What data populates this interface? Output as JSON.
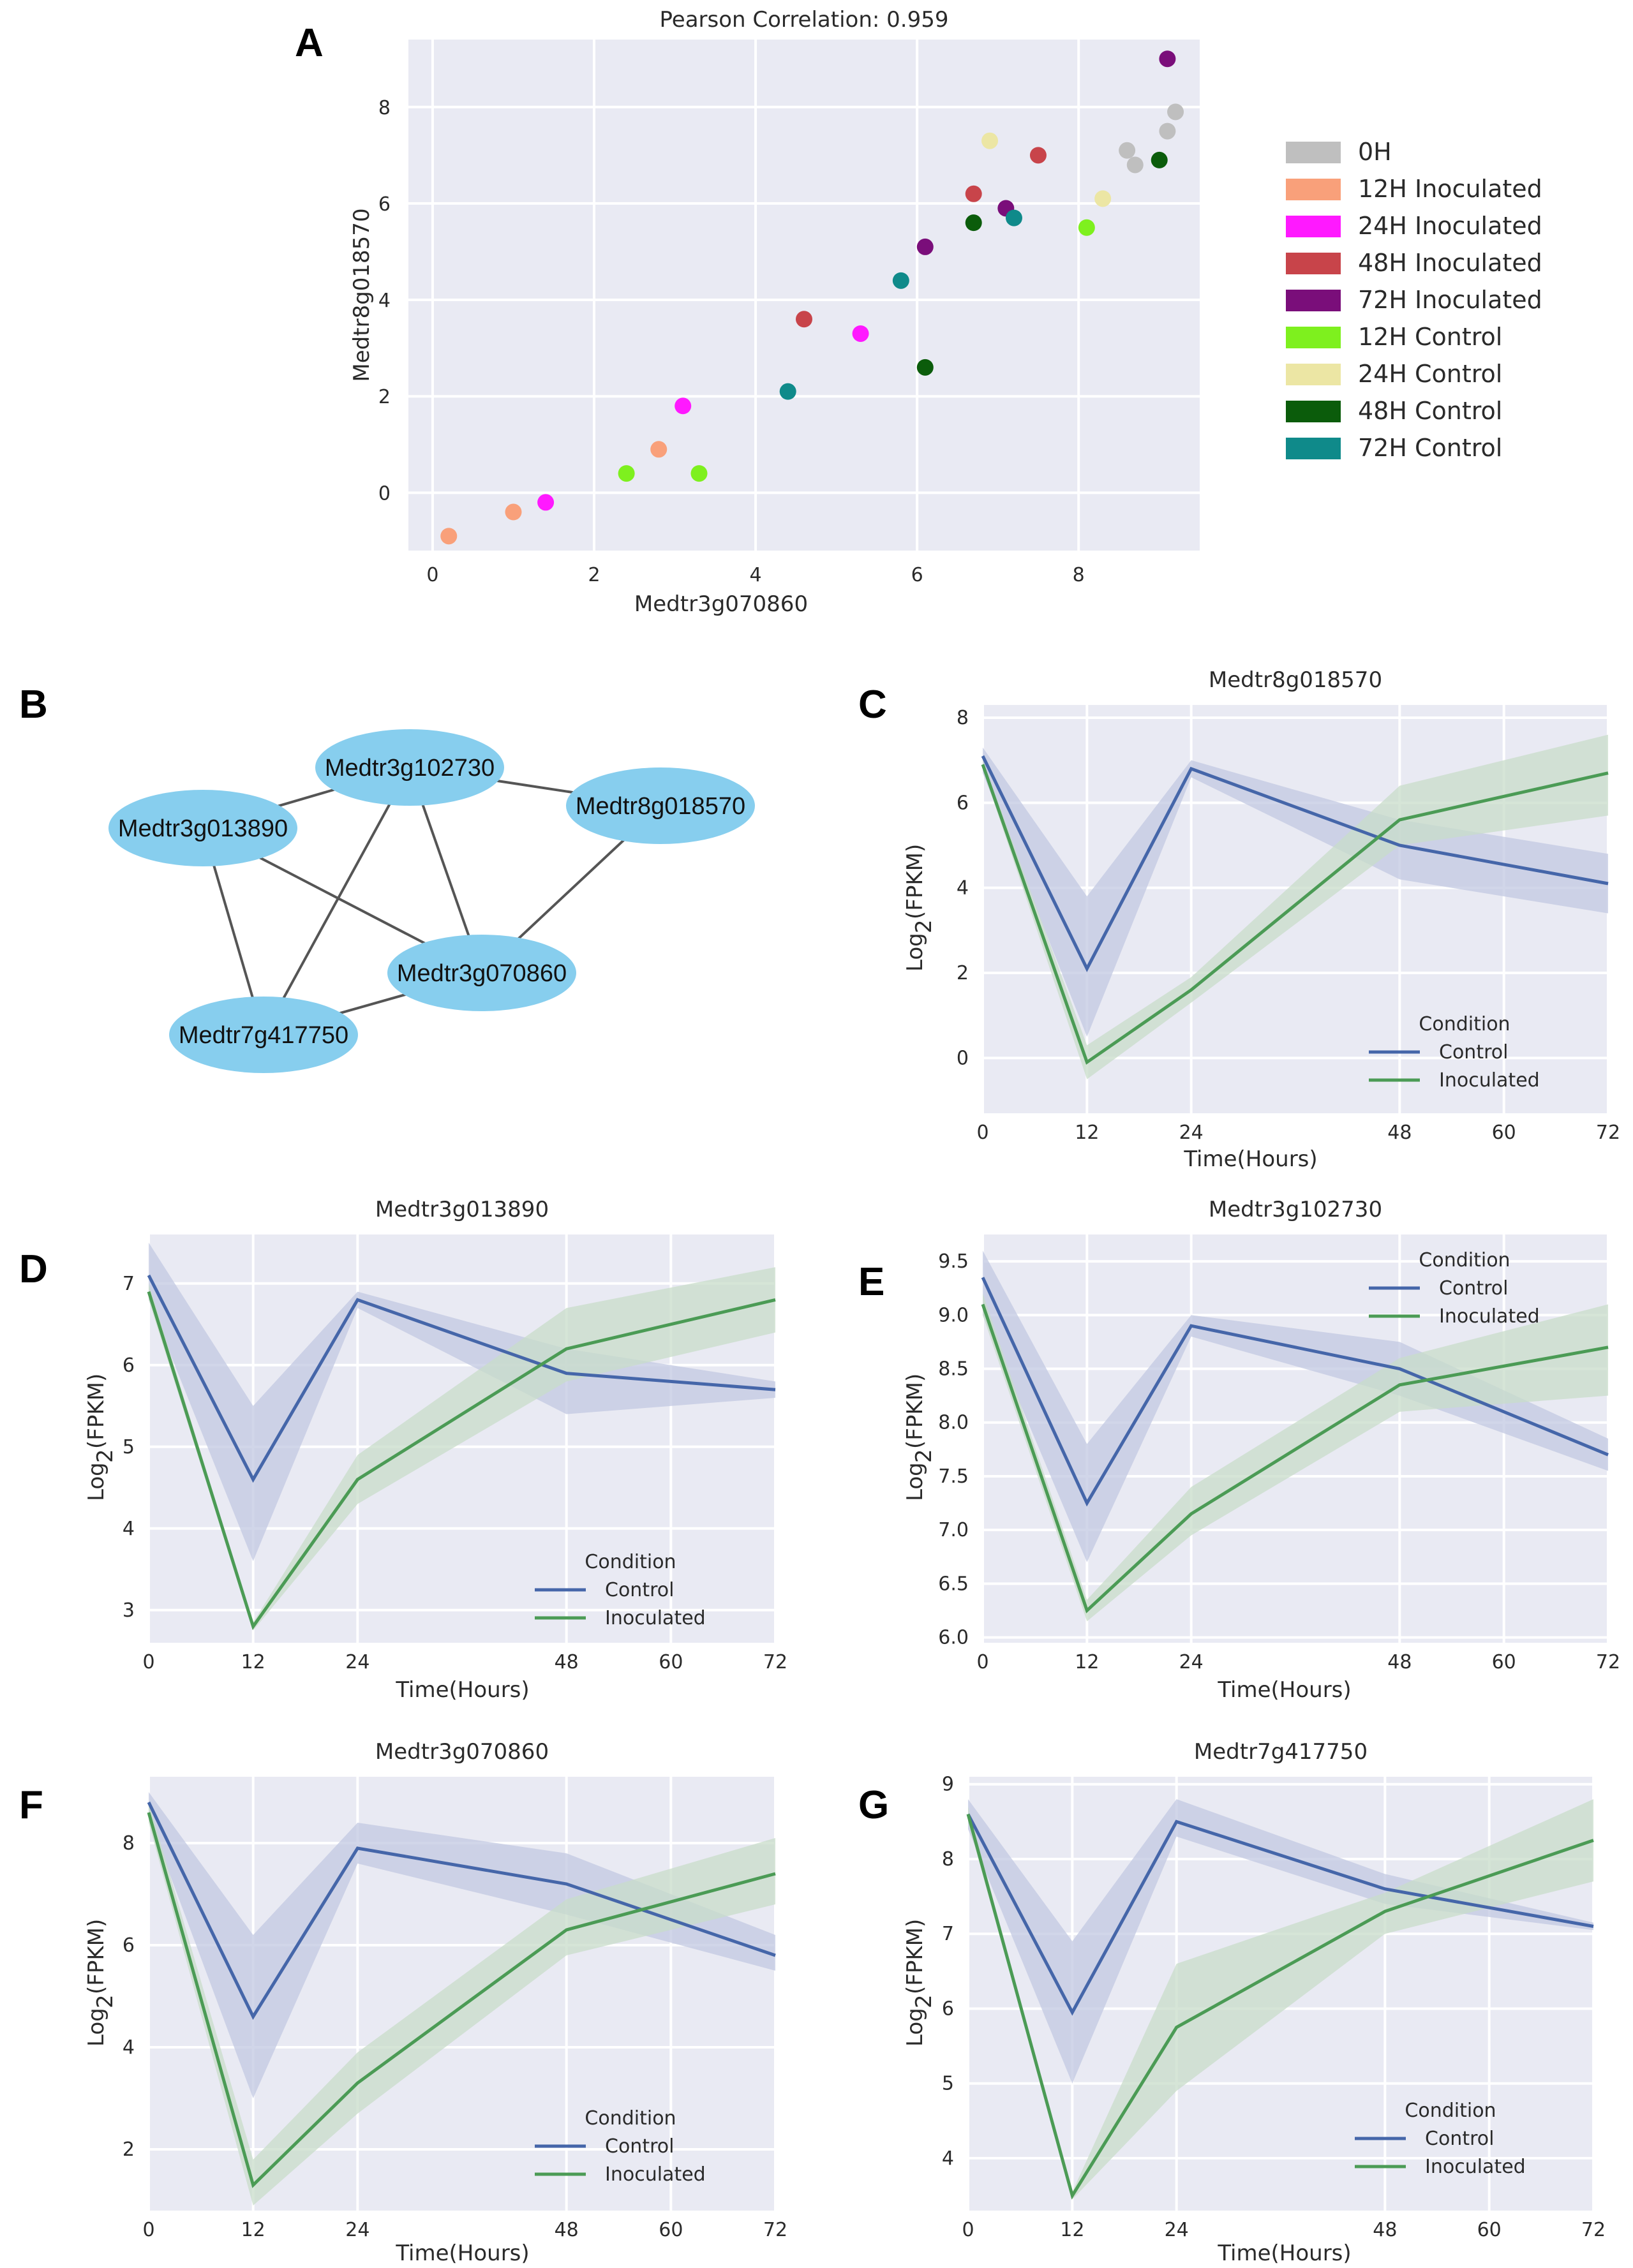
{
  "panel_letters": {
    "A": "A",
    "B": "B",
    "C": "C",
    "D": "D",
    "E": "E",
    "F": "F",
    "G": "G"
  },
  "chart_data": [
    {
      "id": "A",
      "type": "scatter",
      "title": "Pearson Correlation: 0.959",
      "xlabel": "Medtr3g070860",
      "ylabel": "Medtr8g018570",
      "xlim": [
        -0.3,
        9.5
      ],
      "ylim": [
        -1.2,
        9.4
      ],
      "xticks": [
        0,
        2,
        4,
        6,
        8
      ],
      "xtick_labels": [
        "0",
        "2",
        "4",
        "6",
        "8"
      ],
      "yticks": [
        0,
        2,
        4,
        6,
        8
      ],
      "ytick_labels": [
        "0",
        "2",
        "4",
        "6",
        "8"
      ],
      "legend": [
        {
          "label": "0H",
          "color": "#bfbfbf"
        },
        {
          "label": "12H Inoculated",
          "color": "#f9a07a"
        },
        {
          "label": "24H Inoculated",
          "color": "#ff19ff"
        },
        {
          "label": "48H Inoculated",
          "color": "#c8444a"
        },
        {
          "label": "72H Inoculated",
          "color": "#7a0e7a"
        },
        {
          "label": "12H Control",
          "color": "#7ef01e"
        },
        {
          "label": "24H Control",
          "color": "#ece6a4"
        },
        {
          "label": "48H Control",
          "color": "#0b5c0b"
        },
        {
          "label": "72H Control",
          "color": "#0f8a8a"
        }
      ],
      "points": [
        {
          "group": "0H",
          "x": 8.6,
          "y": 7.1
        },
        {
          "group": "0H",
          "x": 8.7,
          "y": 6.8
        },
        {
          "group": "0H",
          "x": 9.1,
          "y": 7.5
        },
        {
          "group": "0H",
          "x": 9.2,
          "y": 7.9
        },
        {
          "group": "12H Inoculated",
          "x": 0.2,
          "y": -0.9
        },
        {
          "group": "12H Inoculated",
          "x": 1.0,
          "y": -0.4
        },
        {
          "group": "12H Inoculated",
          "x": 2.8,
          "y": 0.9
        },
        {
          "group": "24H Inoculated",
          "x": 1.4,
          "y": -0.2
        },
        {
          "group": "24H Inoculated",
          "x": 3.1,
          "y": 1.8
        },
        {
          "group": "24H Inoculated",
          "x": 5.3,
          "y": 3.3
        },
        {
          "group": "48H Inoculated",
          "x": 4.6,
          "y": 3.6
        },
        {
          "group": "48H Inoculated",
          "x": 6.7,
          "y": 6.2
        },
        {
          "group": "48H Inoculated",
          "x": 7.5,
          "y": 7.0
        },
        {
          "group": "72H Inoculated",
          "x": 6.1,
          "y": 5.1
        },
        {
          "group": "72H Inoculated",
          "x": 7.1,
          "y": 5.9
        },
        {
          "group": "72H Inoculated",
          "x": 9.1,
          "y": 9.0
        },
        {
          "group": "12H Control",
          "x": 2.4,
          "y": 0.4
        },
        {
          "group": "12H Control",
          "x": 3.3,
          "y": 0.4
        },
        {
          "group": "12H Control",
          "x": 8.1,
          "y": 5.5
        },
        {
          "group": "24H Control",
          "x": 6.9,
          "y": 7.3
        },
        {
          "group": "24H Control",
          "x": 8.3,
          "y": 6.1
        },
        {
          "group": "48H Control",
          "x": 6.1,
          "y": 2.6
        },
        {
          "group": "48H Control",
          "x": 6.7,
          "y": 5.6
        },
        {
          "group": "48H Control",
          "x": 9.0,
          "y": 6.9
        },
        {
          "group": "72H Control",
          "x": 4.4,
          "y": 2.1
        },
        {
          "group": "72H Control",
          "x": 5.8,
          "y": 4.4
        },
        {
          "group": "72H Control",
          "x": 7.2,
          "y": 5.7
        }
      ]
    },
    {
      "id": "C",
      "type": "line",
      "title": "Medtr8g018570",
      "xlabel": "Time(Hours)",
      "ylabel_main": "Log",
      "ylabel_sub": "2",
      "ylabel_tail": "(FPKM)",
      "xlim": [
        0,
        72
      ],
      "ylim": [
        -1.3,
        8.3
      ],
      "xticks": [
        0,
        12,
        24,
        48,
        60,
        72
      ],
      "yticks": [
        0,
        2,
        4,
        6,
        8
      ],
      "x": [
        0,
        12,
        24,
        48,
        72
      ],
      "legend_title": "Condition",
      "series": [
        {
          "name": "Control",
          "color": "#4566a9",
          "band": "#c2c8e2",
          "values": [
            7.1,
            2.1,
            6.8,
            5.0,
            4.1
          ],
          "lower": [
            6.7,
            0.5,
            6.6,
            4.2,
            3.4
          ],
          "upper": [
            7.3,
            3.8,
            7.0,
            5.6,
            4.8
          ]
        },
        {
          "name": "Inoculated",
          "color": "#4b9b55",
          "band": "#c8dcca",
          "values": [
            6.9,
            -0.1,
            1.6,
            5.6,
            6.7
          ],
          "lower": [
            6.8,
            -0.5,
            1.3,
            5.0,
            5.7
          ],
          "upper": [
            7.0,
            0.3,
            1.9,
            6.4,
            7.6
          ]
        }
      ]
    },
    {
      "id": "D",
      "type": "line",
      "title": "Medtr3g013890",
      "xlabel": "Time(Hours)",
      "ylabel_main": "Log",
      "ylabel_sub": "2",
      "ylabel_tail": "(FPKM)",
      "xlim": [
        0,
        72
      ],
      "ylim": [
        2.6,
        7.6
      ],
      "xticks": [
        0,
        12,
        24,
        48,
        60,
        72
      ],
      "yticks": [
        3,
        4,
        5,
        6,
        7
      ],
      "x": [
        0,
        12,
        24,
        48,
        72
      ],
      "legend_title": "Condition",
      "series": [
        {
          "name": "Control",
          "color": "#4566a9",
          "band": "#c2c8e2",
          "values": [
            7.1,
            4.6,
            6.8,
            5.9,
            5.7
          ],
          "lower": [
            6.8,
            3.6,
            6.7,
            5.4,
            5.6
          ],
          "upper": [
            7.5,
            5.5,
            6.9,
            6.2,
            5.8
          ]
        },
        {
          "name": "Inoculated",
          "color": "#4b9b55",
          "band": "#c8dcca",
          "values": [
            6.9,
            2.8,
            4.6,
            6.2,
            6.8
          ],
          "lower": [
            6.8,
            2.75,
            4.3,
            5.8,
            6.4
          ],
          "upper": [
            7.0,
            2.85,
            4.9,
            6.7,
            7.2
          ]
        }
      ]
    },
    {
      "id": "E",
      "type": "line",
      "title": "Medtr3g102730",
      "xlabel": "Time(Hours)",
      "ylabel_main": "Log",
      "ylabel_sub": "2",
      "ylabel_tail": "(FPKM)",
      "xlim": [
        0,
        72
      ],
      "ylim": [
        5.95,
        9.75
      ],
      "xticks": [
        0,
        12,
        24,
        48,
        60,
        72
      ],
      "yticks": [
        6.0,
        6.5,
        7.0,
        7.5,
        8.0,
        8.5,
        9.0,
        9.5
      ],
      "ytick_labels": [
        "6.0",
        "6.5",
        "7.0",
        "7.5",
        "8.0",
        "8.5",
        "9.0",
        "9.5"
      ],
      "x": [
        0,
        12,
        24,
        48,
        72
      ],
      "legend_title": "Condition",
      "series": [
        {
          "name": "Control",
          "color": "#4566a9",
          "band": "#c2c8e2",
          "values": [
            9.35,
            7.25,
            8.9,
            8.5,
            7.7
          ],
          "lower": [
            9.0,
            6.7,
            8.8,
            8.25,
            7.55
          ],
          "upper": [
            9.6,
            7.8,
            9.0,
            8.75,
            7.85
          ]
        },
        {
          "name": "Inoculated",
          "color": "#4b9b55",
          "band": "#c8dcca",
          "values": [
            9.1,
            6.25,
            7.15,
            8.35,
            8.7
          ],
          "lower": [
            9.0,
            6.15,
            6.95,
            8.1,
            8.25
          ],
          "upper": [
            9.2,
            6.35,
            7.4,
            8.6,
            9.1
          ]
        }
      ]
    },
    {
      "id": "F",
      "type": "line",
      "title": "Medtr3g070860",
      "xlabel": "Time(Hours)",
      "ylabel_main": "Log",
      "ylabel_sub": "2",
      "ylabel_tail": "(FPKM)",
      "xlim": [
        0,
        72
      ],
      "ylim": [
        0.8,
        9.3
      ],
      "xticks": [
        0,
        12,
        24,
        48,
        60,
        72
      ],
      "yticks": [
        2,
        4,
        6,
        8
      ],
      "x": [
        0,
        12,
        24,
        48,
        72
      ],
      "legend_title": "Condition",
      "series": [
        {
          "name": "Control",
          "color": "#4566a9",
          "band": "#c2c8e2",
          "values": [
            8.8,
            4.6,
            7.9,
            7.2,
            5.8
          ],
          "lower": [
            8.5,
            3.0,
            7.6,
            6.6,
            5.5
          ],
          "upper": [
            9.0,
            6.2,
            8.4,
            7.8,
            6.2
          ]
        },
        {
          "name": "Inoculated",
          "color": "#4b9b55",
          "band": "#c8dcca",
          "values": [
            8.6,
            1.3,
            3.3,
            6.3,
            7.4
          ],
          "lower": [
            8.4,
            0.9,
            2.7,
            5.8,
            6.8
          ],
          "upper": [
            8.8,
            1.8,
            3.9,
            6.9,
            8.1
          ]
        }
      ]
    },
    {
      "id": "G",
      "type": "line",
      "title": "Medtr7g417750",
      "xlabel": "Time(Hours)",
      "ylabel_main": "Log",
      "ylabel_sub": "2",
      "ylabel_tail": "(FPKM)",
      "xlim": [
        0,
        72
      ],
      "ylim": [
        3.3,
        9.1
      ],
      "xticks": [
        0,
        12,
        24,
        48,
        60,
        72
      ],
      "yticks": [
        4,
        5,
        6,
        7,
        8,
        9
      ],
      "x": [
        0,
        12,
        24,
        48,
        72
      ],
      "legend_title": "Condition",
      "series": [
        {
          "name": "Control",
          "color": "#4566a9",
          "band": "#c2c8e2",
          "values": [
            8.6,
            5.95,
            8.5,
            7.6,
            7.1
          ],
          "lower": [
            8.4,
            5.0,
            8.3,
            7.4,
            7.05
          ],
          "upper": [
            8.8,
            6.9,
            8.8,
            7.8,
            7.15
          ]
        },
        {
          "name": "Inoculated",
          "color": "#4b9b55",
          "band": "#c8dcca",
          "values": [
            8.6,
            3.5,
            5.75,
            7.3,
            8.25
          ],
          "lower": [
            8.5,
            3.45,
            4.9,
            7.0,
            7.7
          ],
          "upper": [
            8.7,
            3.55,
            6.6,
            7.55,
            8.8
          ]
        }
      ]
    }
  ],
  "network": {
    "node_color": "#87ceee",
    "nodes": [
      {
        "id": "Medtr3g102730",
        "label": "Medtr3g102730"
      },
      {
        "id": "Medtr8g018570",
        "label": "Medtr8g018570"
      },
      {
        "id": "Medtr3g013890",
        "label": "Medtr3g013890"
      },
      {
        "id": "Medtr3g070860",
        "label": "Medtr3g070860"
      },
      {
        "id": "Medtr7g417750",
        "label": "Medtr7g417750"
      }
    ],
    "edges": [
      [
        "Medtr3g013890",
        "Medtr3g102730"
      ],
      [
        "Medtr3g102730",
        "Medtr8g018570"
      ],
      [
        "Medtr3g102730",
        "Medtr3g070860"
      ],
      [
        "Medtr3g102730",
        "Medtr7g417750"
      ],
      [
        "Medtr3g013890",
        "Medtr3g070860"
      ],
      [
        "Medtr3g013890",
        "Medtr7g417750"
      ],
      [
        "Medtr8g018570",
        "Medtr3g070860"
      ],
      [
        "Medtr3g070860",
        "Medtr7g417750"
      ]
    ]
  }
}
